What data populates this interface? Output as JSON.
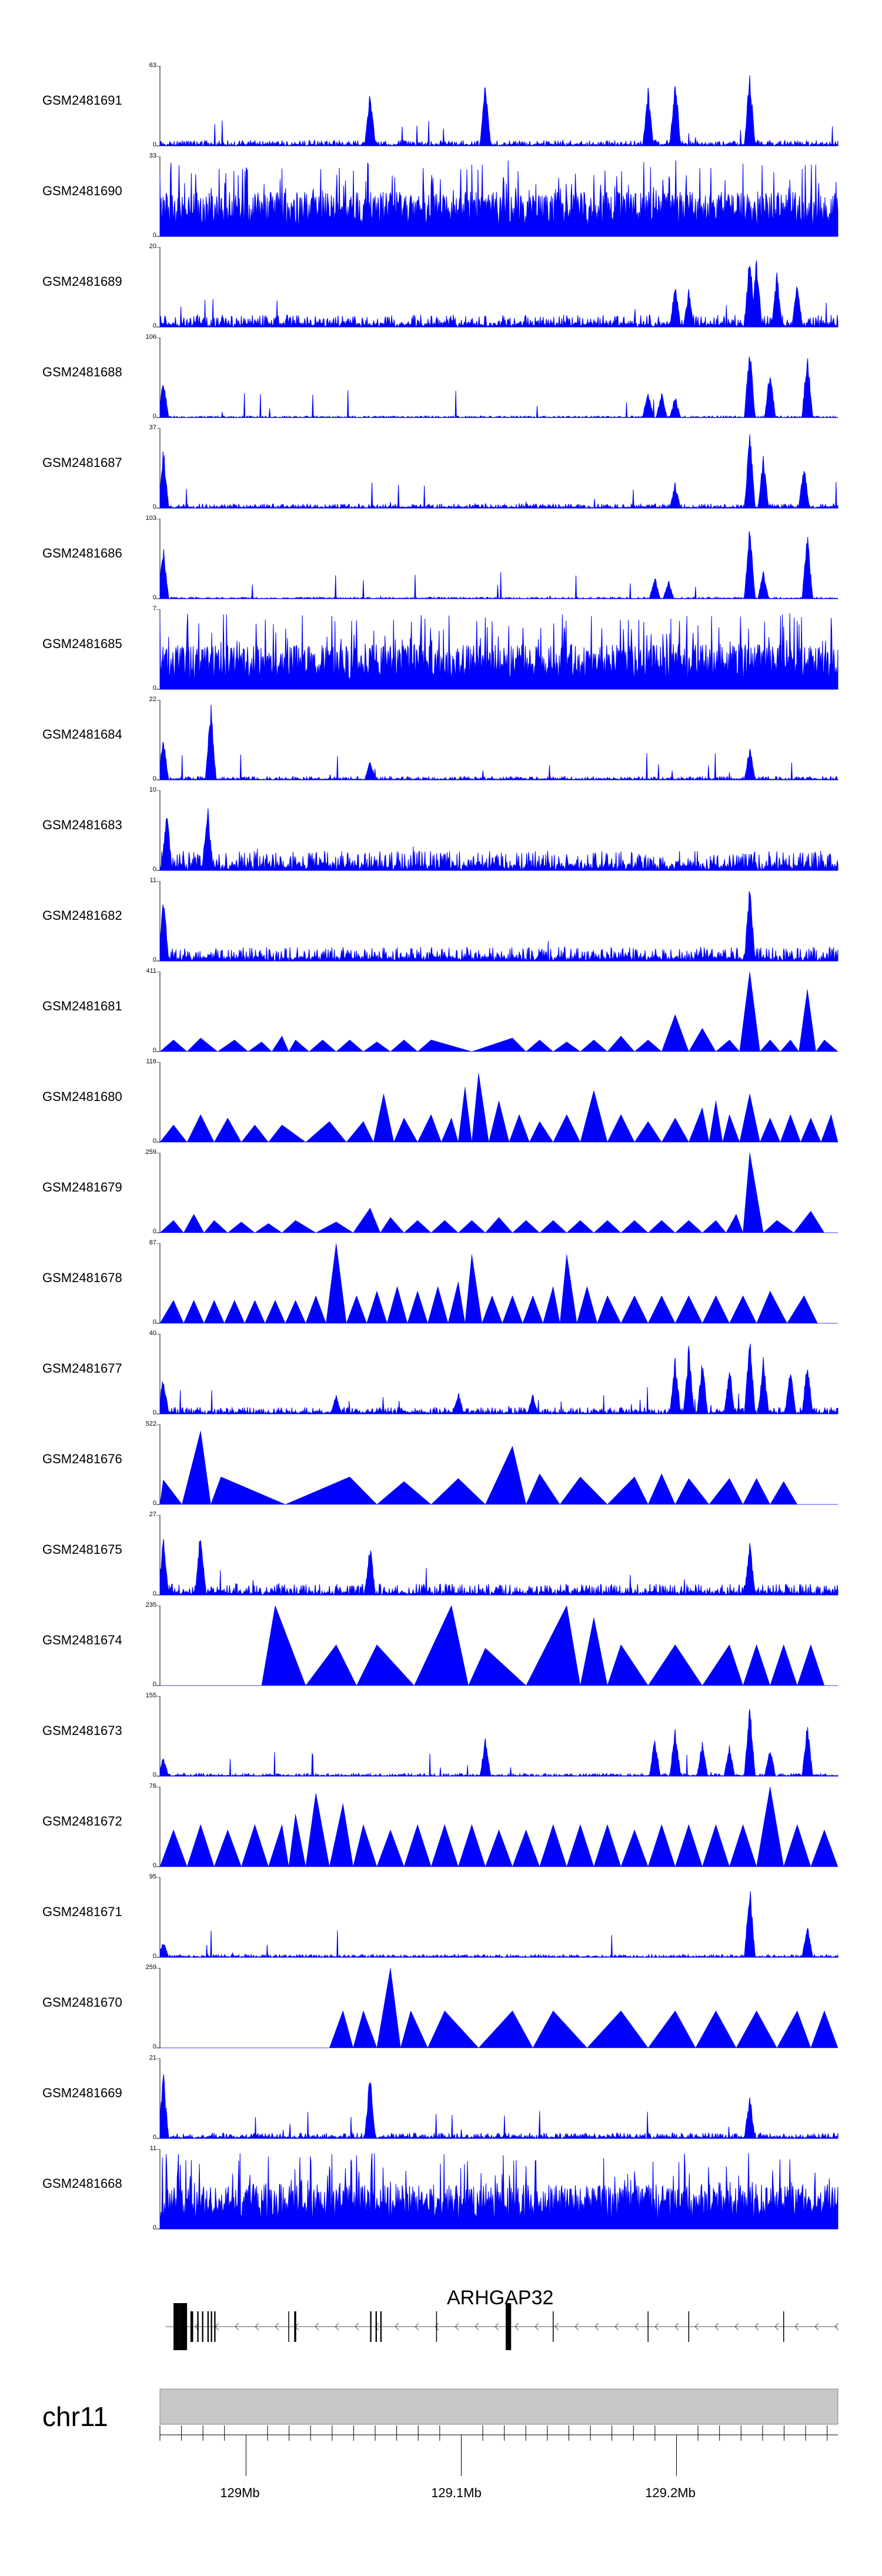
{
  "chart_data": {
    "type": "area",
    "title": "",
    "region": {
      "chromosome": "chr11",
      "start_mb": 128.96,
      "end_mb": 129.275
    },
    "colors": {
      "signal": "#0000ff",
      "axis": "#000000",
      "ideogram": "#c8c8c8"
    },
    "tracks": [
      {
        "name": "GSM2481691",
        "ymax": 63,
        "style": "sparse",
        "seed": 11,
        "peaks": [
          [
            0.31,
            45
          ],
          [
            0.48,
            52
          ],
          [
            0.72,
            48
          ],
          [
            0.76,
            60
          ],
          [
            0.87,
            62
          ]
        ]
      },
      {
        "name": "GSM2481690",
        "ymax": 33,
        "style": "dense",
        "seed": 12,
        "peaks": []
      },
      {
        "name": "GSM2481689",
        "ymax": 20,
        "style": "sparse",
        "seed": 13,
        "level": 0.22,
        "peaks": [
          [
            0.76,
            12
          ],
          [
            0.78,
            10
          ],
          [
            0.87,
            20
          ],
          [
            0.88,
            18
          ],
          [
            0.91,
            14
          ],
          [
            0.94,
            12
          ]
        ]
      },
      {
        "name": "GSM2481688",
        "ymax": 106,
        "style": "sparse",
        "seed": 14,
        "level": 0.03,
        "peaks": [
          [
            0.005,
            55
          ],
          [
            0.72,
            40
          ],
          [
            0.74,
            35
          ],
          [
            0.76,
            30
          ],
          [
            0.87,
            100
          ],
          [
            0.9,
            70
          ],
          [
            0.955,
            95
          ]
        ]
      },
      {
        "name": "GSM2481687",
        "ymax": 37,
        "style": "sparse",
        "seed": 15,
        "level": 0.08,
        "peaks": [
          [
            0.005,
            30
          ],
          [
            0.76,
            12
          ],
          [
            0.87,
            37
          ],
          [
            0.89,
            25
          ],
          [
            0.95,
            22
          ]
        ]
      },
      {
        "name": "GSM2481686",
        "ymax": 103,
        "style": "sparse",
        "seed": 16,
        "level": 0.03,
        "peaks": [
          [
            0.005,
            70
          ],
          [
            0.73,
            30
          ],
          [
            0.75,
            25
          ],
          [
            0.87,
            103
          ],
          [
            0.89,
            40
          ],
          [
            0.955,
            90
          ]
        ]
      },
      {
        "name": "GSM2481685",
        "ymax": 7,
        "style": "dense",
        "seed": 17,
        "peaks": []
      },
      {
        "name": "GSM2481684",
        "ymax": 22,
        "style": "sparse",
        "seed": 18,
        "level": 0.06,
        "peaks": [
          [
            0.005,
            12
          ],
          [
            0.075,
            22
          ],
          [
            0.31,
            6
          ],
          [
            0.87,
            10
          ]
        ]
      },
      {
        "name": "GSM2481683",
        "ymax": 10,
        "style": "sparse",
        "seed": 19,
        "level": 0.35,
        "peaks": [
          [
            0.01,
            8
          ],
          [
            0.07,
            9
          ]
        ]
      },
      {
        "name": "GSM2481682",
        "ymax": 11,
        "style": "sparse",
        "seed": 20,
        "level": 0.25,
        "peaks": [
          [
            0.005,
            10
          ],
          [
            0.87,
            11
          ]
        ]
      },
      {
        "name": "GSM2481681",
        "ymax": 411,
        "style": "triangles",
        "seed": 21,
        "peaks": [
          [
            0.02,
            60
          ],
          [
            0.06,
            70
          ],
          [
            0.11,
            60
          ],
          [
            0.15,
            50
          ],
          [
            0.18,
            80
          ],
          [
            0.2,
            60
          ],
          [
            0.24,
            60
          ],
          [
            0.28,
            60
          ],
          [
            0.32,
            50
          ],
          [
            0.36,
            60
          ],
          [
            0.4,
            60
          ],
          [
            0.52,
            70
          ],
          [
            0.56,
            60
          ],
          [
            0.6,
            50
          ],
          [
            0.64,
            60
          ],
          [
            0.68,
            80
          ],
          [
            0.72,
            60
          ],
          [
            0.76,
            190
          ],
          [
            0.8,
            120
          ],
          [
            0.84,
            60
          ],
          [
            0.87,
            411
          ],
          [
            0.9,
            60
          ],
          [
            0.93,
            60
          ],
          [
            0.955,
            320
          ],
          [
            0.98,
            60
          ]
        ]
      },
      {
        "name": "GSM2481680",
        "ymax": 116,
        "style": "triangles",
        "seed": 22,
        "peaks": [
          [
            0.02,
            25
          ],
          [
            0.06,
            40
          ],
          [
            0.1,
            35
          ],
          [
            0.14,
            25
          ],
          [
            0.18,
            25
          ],
          [
            0.25,
            30
          ],
          [
            0.3,
            30
          ],
          [
            0.33,
            70
          ],
          [
            0.36,
            35
          ],
          [
            0.4,
            40
          ],
          [
            0.43,
            35
          ],
          [
            0.45,
            80
          ],
          [
            0.47,
            100
          ],
          [
            0.5,
            60
          ],
          [
            0.53,
            40
          ],
          [
            0.56,
            30
          ],
          [
            0.6,
            40
          ],
          [
            0.64,
            75
          ],
          [
            0.68,
            40
          ],
          [
            0.72,
            30
          ],
          [
            0.76,
            35
          ],
          [
            0.8,
            50
          ],
          [
            0.82,
            60
          ],
          [
            0.84,
            40
          ],
          [
            0.87,
            70
          ],
          [
            0.9,
            35
          ],
          [
            0.93,
            40
          ],
          [
            0.96,
            35
          ],
          [
            0.99,
            40
          ]
        ]
      },
      {
        "name": "GSM2481679",
        "ymax": 259,
        "style": "triangles",
        "seed": 23,
        "peaks": [
          [
            0.02,
            40
          ],
          [
            0.05,
            60
          ],
          [
            0.08,
            40
          ],
          [
            0.12,
            35
          ],
          [
            0.16,
            30
          ],
          [
            0.2,
            40
          ],
          [
            0.26,
            35
          ],
          [
            0.31,
            80
          ],
          [
            0.34,
            50
          ],
          [
            0.38,
            40
          ],
          [
            0.42,
            40
          ],
          [
            0.46,
            40
          ],
          [
            0.5,
            50
          ],
          [
            0.54,
            40
          ],
          [
            0.58,
            40
          ],
          [
            0.62,
            40
          ],
          [
            0.66,
            40
          ],
          [
            0.7,
            40
          ],
          [
            0.74,
            40
          ],
          [
            0.78,
            40
          ],
          [
            0.82,
            40
          ],
          [
            0.85,
            60
          ],
          [
            0.87,
            259
          ],
          [
            0.91,
            40
          ],
          [
            0.96,
            70
          ]
        ]
      },
      {
        "name": "GSM2481678",
        "ymax": 87,
        "style": "triangles",
        "seed": 24,
        "peaks": [
          [
            0.02,
            25
          ],
          [
            0.05,
            25
          ],
          [
            0.08,
            25
          ],
          [
            0.11,
            25
          ],
          [
            0.14,
            25
          ],
          [
            0.17,
            25
          ],
          [
            0.2,
            25
          ],
          [
            0.23,
            30
          ],
          [
            0.26,
            87
          ],
          [
            0.29,
            30
          ],
          [
            0.32,
            35
          ],
          [
            0.35,
            40
          ],
          [
            0.38,
            35
          ],
          [
            0.41,
            40
          ],
          [
            0.44,
            45
          ],
          [
            0.46,
            75
          ],
          [
            0.49,
            30
          ],
          [
            0.52,
            30
          ],
          [
            0.55,
            30
          ],
          [
            0.58,
            40
          ],
          [
            0.6,
            75
          ],
          [
            0.63,
            40
          ],
          [
            0.66,
            30
          ],
          [
            0.7,
            30
          ],
          [
            0.74,
            30
          ],
          [
            0.78,
            30
          ],
          [
            0.82,
            30
          ],
          [
            0.86,
            30
          ],
          [
            0.9,
            35
          ],
          [
            0.95,
            30
          ]
        ]
      },
      {
        "name": "GSM2481677",
        "ymax": 40,
        "style": "sparse",
        "seed": 25,
        "level": 0.12,
        "peaks": [
          [
            0.005,
            20
          ],
          [
            0.26,
            10
          ],
          [
            0.44,
            12
          ],
          [
            0.55,
            10
          ],
          [
            0.76,
            30
          ],
          [
            0.78,
            35
          ],
          [
            0.8,
            28
          ],
          [
            0.84,
            25
          ],
          [
            0.87,
            40
          ],
          [
            0.89,
            30
          ],
          [
            0.93,
            25
          ],
          [
            0.955,
            28
          ]
        ]
      },
      {
        "name": "GSM2481676",
        "ymax": 522,
        "style": "triangles",
        "seed": 26,
        "peaks": [
          [
            0.005,
            160
          ],
          [
            0.06,
            480
          ],
          [
            0.09,
            180
          ],
          [
            0.28,
            180
          ],
          [
            0.36,
            150
          ],
          [
            0.44,
            170
          ],
          [
            0.52,
            380
          ],
          [
            0.56,
            200
          ],
          [
            0.62,
            180
          ],
          [
            0.7,
            180
          ],
          [
            0.74,
            200
          ],
          [
            0.78,
            170
          ],
          [
            0.84,
            170
          ],
          [
            0.88,
            170
          ],
          [
            0.92,
            150
          ]
        ]
      },
      {
        "name": "GSM2481675",
        "ymax": 27,
        "style": "sparse",
        "seed": 27,
        "level": 0.2,
        "peaks": [
          [
            0.005,
            20
          ],
          [
            0.06,
            25
          ],
          [
            0.31,
            18
          ],
          [
            0.87,
            20
          ]
        ]
      },
      {
        "name": "GSM2481674",
        "ymax": 235,
        "style": "triangles",
        "seed": 28,
        "peaks": [
          [
            0.17,
            235
          ],
          [
            0.26,
            120
          ],
          [
            0.32,
            120
          ],
          [
            0.43,
            235
          ],
          [
            0.48,
            110
          ],
          [
            0.6,
            235
          ],
          [
            0.64,
            200
          ],
          [
            0.68,
            120
          ],
          [
            0.76,
            120
          ],
          [
            0.84,
            120
          ],
          [
            0.88,
            120
          ],
          [
            0.92,
            120
          ],
          [
            0.96,
            120
          ]
        ]
      },
      {
        "name": "GSM2481673",
        "ymax": 155,
        "style": "sparse",
        "seed": 29,
        "level": 0.05,
        "peaks": [
          [
            0.005,
            40
          ],
          [
            0.48,
            80
          ],
          [
            0.73,
            80
          ],
          [
            0.76,
            100
          ],
          [
            0.8,
            70
          ],
          [
            0.84,
            60
          ],
          [
            0.87,
            155
          ],
          [
            0.9,
            60
          ],
          [
            0.955,
            110
          ]
        ]
      },
      {
        "name": "GSM2481672",
        "ymax": 76,
        "style": "triangles",
        "seed": 30,
        "peaks": [
          [
            0.02,
            35
          ],
          [
            0.06,
            40
          ],
          [
            0.1,
            35
          ],
          [
            0.14,
            40
          ],
          [
            0.18,
            40
          ],
          [
            0.2,
            50
          ],
          [
            0.23,
            70
          ],
          [
            0.27,
            60
          ],
          [
            0.3,
            40
          ],
          [
            0.34,
            35
          ],
          [
            0.38,
            40
          ],
          [
            0.42,
            40
          ],
          [
            0.46,
            40
          ],
          [
            0.5,
            35
          ],
          [
            0.54,
            35
          ],
          [
            0.58,
            40
          ],
          [
            0.62,
            40
          ],
          [
            0.66,
            40
          ],
          [
            0.7,
            35
          ],
          [
            0.74,
            40
          ],
          [
            0.78,
            40
          ],
          [
            0.82,
            40
          ],
          [
            0.86,
            40
          ],
          [
            0.9,
            76
          ],
          [
            0.94,
            40
          ],
          [
            0.98,
            35
          ]
        ]
      },
      {
        "name": "GSM2481671",
        "ymax": 95,
        "style": "sparse",
        "seed": 31,
        "level": 0.05,
        "peaks": [
          [
            0.005,
            20
          ],
          [
            0.87,
            95
          ],
          [
            0.955,
            40
          ]
        ]
      },
      {
        "name": "GSM2481670",
        "ymax": 259,
        "style": "triangles",
        "seed": 32,
        "peaks": [
          [
            0.27,
            120
          ],
          [
            0.3,
            120
          ],
          [
            0.34,
            259
          ],
          [
            0.37,
            120
          ],
          [
            0.42,
            120
          ],
          [
            0.52,
            120
          ],
          [
            0.58,
            120
          ],
          [
            0.68,
            120
          ],
          [
            0.76,
            120
          ],
          [
            0.82,
            120
          ],
          [
            0.88,
            120
          ],
          [
            0.94,
            120
          ],
          [
            0.98,
            120
          ]
        ]
      },
      {
        "name": "GSM2481669",
        "ymax": 21,
        "style": "sparse",
        "seed": 33,
        "level": 0.1,
        "peaks": [
          [
            0.005,
            18
          ],
          [
            0.31,
            18
          ],
          [
            0.87,
            12
          ]
        ]
      },
      {
        "name": "GSM2481668",
        "ymax": 11,
        "style": "dense",
        "seed": 34,
        "peaks": []
      }
    ],
    "gene": {
      "name": "ARHGAP32",
      "strand": "-",
      "exons": [
        [
          0.02,
          0.03
        ],
        [
          0.03,
          0.04
        ],
        [
          0.045,
          0.049
        ],
        [
          0.055,
          0.057
        ],
        [
          0.062,
          0.064
        ],
        [
          0.07,
          0.072
        ],
        [
          0.075,
          0.077
        ],
        [
          0.08,
          0.082
        ],
        [
          0.198,
          0.201
        ],
        [
          0.31,
          0.312
        ],
        [
          0.318,
          0.32
        ],
        [
          0.325,
          0.327
        ],
        [
          0.51,
          0.518
        ]
      ]
    },
    "ideogram": {
      "ticks_mb": [
        128.96,
        128.97,
        128.98,
        128.99,
        129.0,
        129.01,
        129.02,
        129.03,
        129.04,
        129.05,
        129.06,
        129.07,
        129.08,
        129.09,
        129.1,
        129.11,
        129.12,
        129.13,
        129.14,
        129.15,
        129.16,
        129.17,
        129.18,
        129.19,
        129.2,
        129.21,
        129.22,
        129.23,
        129.24,
        129.25,
        129.26,
        129.27
      ]
    },
    "xaxis": {
      "tick_labels": [
        "129Mb",
        "129.1Mb",
        "129.2Mb"
      ],
      "tick_values_mb": [
        129.0,
        129.1,
        129.2
      ]
    }
  }
}
